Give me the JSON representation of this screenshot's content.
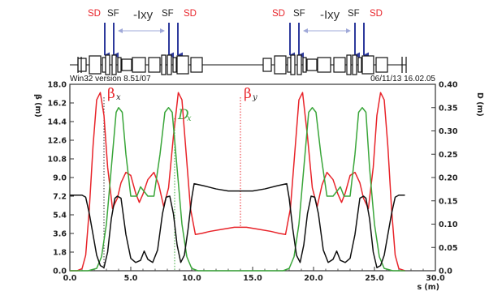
{
  "header": {
    "version": "Win32 version 8.51/07",
    "datetime": "06/11/13  16.02.05"
  },
  "magnets": {
    "sd": "SD",
    "sf": "SF",
    "lxy": "-Ixy",
    "sd_color": "#e8242a",
    "sf_color": "#222222",
    "arrow_color": "#2e3a9c",
    "lxy_line_color": "#9fa8d8"
  },
  "chart_data": {
    "type": "line",
    "xlabel": "s (m)",
    "ylabel_left": "β (m)",
    "ylabel_right": "D (m)",
    "xlim": [
      0,
      30
    ],
    "ylim_left": [
      0,
      18
    ],
    "ylim_right": [
      0,
      0.4
    ],
    "x_ticks": [
      "0.0",
      "5.0",
      "10.0",
      "15.0",
      "20.0",
      "25.0",
      "30.0"
    ],
    "y_ticks_left": [
      "0.0",
      "1.8",
      "3.6",
      "5.4",
      "7.2",
      "9.0",
      "10.8",
      "12.6",
      "14.4",
      "16.2",
      "18.0"
    ],
    "y_ticks_right": [
      "0.0",
      "0.05",
      "0.10",
      "0.15",
      "0.20",
      "0.25",
      "0.30",
      "0.35",
      "0.40"
    ],
    "grid": false,
    "series": [
      {
        "name": "βx",
        "axis": "left",
        "color": "#e8242a",
        "points": [
          [
            0,
            0
          ],
          [
            0.6,
            0
          ],
          [
            1.0,
            0.2
          ],
          [
            1.3,
            1.5
          ],
          [
            1.6,
            6
          ],
          [
            1.9,
            12
          ],
          [
            2.2,
            16.5
          ],
          [
            2.5,
            17.2
          ],
          [
            2.8,
            15
          ],
          [
            3.1,
            10
          ],
          [
            3.5,
            6
          ],
          [
            3.9,
            7
          ],
          [
            4.2,
            8.5
          ],
          [
            4.6,
            9.5
          ],
          [
            5.0,
            9.2
          ],
          [
            5.4,
            7.5
          ],
          [
            5.7,
            6.6
          ],
          [
            6.0,
            7.4
          ],
          [
            6.4,
            8.8
          ],
          [
            6.9,
            9.5
          ],
          [
            7.3,
            8.3
          ],
          [
            7.7,
            6.2
          ],
          [
            8.1,
            8
          ],
          [
            8.5,
            13
          ],
          [
            8.9,
            17.2
          ],
          [
            9.2,
            16.5
          ],
          [
            9.5,
            12
          ],
          [
            9.9,
            6
          ],
          [
            10.3,
            3.5
          ],
          [
            10.8,
            3.6
          ],
          [
            11.5,
            3.8
          ],
          [
            12.5,
            4.0
          ],
          [
            13.5,
            4.2
          ],
          [
            14.0,
            4.2
          ],
          [
            14.5,
            4.2
          ],
          [
            15.5,
            4.0
          ],
          [
            16.5,
            3.8
          ],
          [
            17.2,
            3.6
          ],
          [
            17.7,
            3.5
          ],
          [
            18.1,
            6
          ],
          [
            18.5,
            12
          ],
          [
            18.8,
            16.5
          ],
          [
            19.1,
            17.2
          ],
          [
            19.5,
            13
          ],
          [
            19.9,
            8
          ],
          [
            20.3,
            6.2
          ],
          [
            20.7,
            8.3
          ],
          [
            21.1,
            9.5
          ],
          [
            21.6,
            8.8
          ],
          [
            22.0,
            7.4
          ],
          [
            22.3,
            6.6
          ],
          [
            22.6,
            7.5
          ],
          [
            23.0,
            9.2
          ],
          [
            23.4,
            9.5
          ],
          [
            23.8,
            8.5
          ],
          [
            24.1,
            7
          ],
          [
            24.5,
            6
          ],
          [
            24.9,
            10
          ],
          [
            25.2,
            15
          ],
          [
            25.5,
            17.2
          ],
          [
            25.8,
            16.5
          ],
          [
            26.1,
            12
          ],
          [
            26.4,
            6
          ],
          [
            26.7,
            1.5
          ],
          [
            27.0,
            0.2
          ],
          [
            27.5,
            0
          ]
        ]
      },
      {
        "name": "Dx",
        "axis": "right",
        "color": "#3aa63a",
        "points": [
          [
            0,
            0
          ],
          [
            1.5,
            0
          ],
          [
            2.2,
            0.005
          ],
          [
            2.6,
            0.03
          ],
          [
            3.0,
            0.1
          ],
          [
            3.4,
            0.22
          ],
          [
            3.8,
            0.34
          ],
          [
            4.0,
            0.35
          ],
          [
            4.3,
            0.34
          ],
          [
            4.6,
            0.25
          ],
          [
            5.0,
            0.16
          ],
          [
            5.5,
            0.16
          ],
          [
            5.8,
            0.18
          ],
          [
            6.1,
            0.17
          ],
          [
            6.4,
            0.16
          ],
          [
            6.9,
            0.16
          ],
          [
            7.4,
            0.25
          ],
          [
            7.8,
            0.34
          ],
          [
            8.1,
            0.35
          ],
          [
            8.4,
            0.34
          ],
          [
            8.8,
            0.22
          ],
          [
            9.2,
            0.1
          ],
          [
            9.6,
            0.03
          ],
          [
            10.0,
            0.005
          ],
          [
            10.5,
            0
          ],
          [
            17.5,
            0
          ],
          [
            18.0,
            0.005
          ],
          [
            18.4,
            0.03
          ],
          [
            18.8,
            0.1
          ],
          [
            19.2,
            0.22
          ],
          [
            19.6,
            0.34
          ],
          [
            19.9,
            0.35
          ],
          [
            20.2,
            0.34
          ],
          [
            20.6,
            0.25
          ],
          [
            21.1,
            0.16
          ],
          [
            21.6,
            0.16
          ],
          [
            21.9,
            0.17
          ],
          [
            22.2,
            0.18
          ],
          [
            22.5,
            0.16
          ],
          [
            23.0,
            0.16
          ],
          [
            23.4,
            0.25
          ],
          [
            23.7,
            0.34
          ],
          [
            24.0,
            0.35
          ],
          [
            24.3,
            0.34
          ],
          [
            24.6,
            0.22
          ],
          [
            25.0,
            0.1
          ],
          [
            25.4,
            0.03
          ],
          [
            25.8,
            0.005
          ],
          [
            26.5,
            0
          ],
          [
            27.5,
            0
          ]
        ]
      },
      {
        "name": "βy",
        "axis": "left",
        "color": "#111111",
        "points": [
          [
            0,
            7.3
          ],
          [
            1.0,
            7.3
          ],
          [
            1.3,
            7.1
          ],
          [
            1.6,
            5.5
          ],
          [
            1.9,
            3.5
          ],
          [
            2.2,
            1.5
          ],
          [
            2.5,
            0.5
          ],
          [
            2.8,
            0.3
          ],
          [
            3.1,
            1.8
          ],
          [
            3.4,
            5
          ],
          [
            3.7,
            7.0
          ],
          [
            3.9,
            7.2
          ],
          [
            4.2,
            7.0
          ],
          [
            4.6,
            3.5
          ],
          [
            5.0,
            1.2
          ],
          [
            5.4,
            0.8
          ],
          [
            5.8,
            1.0
          ],
          [
            6.1,
            1.9
          ],
          [
            6.4,
            1.1
          ],
          [
            6.8,
            0.8
          ],
          [
            7.2,
            2
          ],
          [
            7.6,
            5.5
          ],
          [
            7.9,
            7.1
          ],
          [
            8.2,
            7.2
          ],
          [
            8.5,
            5.5
          ],
          [
            8.8,
            2.5
          ],
          [
            9.1,
            0.8
          ],
          [
            9.4,
            1.5
          ],
          [
            9.7,
            4
          ],
          [
            10.0,
            7.0
          ],
          [
            10.2,
            8.4
          ],
          [
            11.0,
            8.2
          ],
          [
            12.0,
            7.9
          ],
          [
            13.0,
            7.7
          ],
          [
            14.0,
            7.7
          ],
          [
            15.0,
            7.7
          ],
          [
            16.0,
            7.9
          ],
          [
            17.0,
            8.2
          ],
          [
            17.8,
            8.4
          ],
          [
            18.0,
            7.0
          ],
          [
            18.3,
            4
          ],
          [
            18.6,
            1.5
          ],
          [
            18.9,
            0.8
          ],
          [
            19.2,
            2.5
          ],
          [
            19.5,
            5.5
          ],
          [
            19.8,
            7.2
          ],
          [
            20.1,
            7.1
          ],
          [
            20.4,
            5.5
          ],
          [
            20.8,
            2
          ],
          [
            21.2,
            0.8
          ],
          [
            21.6,
            1.1
          ],
          [
            21.9,
            1.9
          ],
          [
            22.2,
            1.0
          ],
          [
            22.6,
            0.8
          ],
          [
            23.0,
            1.2
          ],
          [
            23.4,
            3.5
          ],
          [
            23.8,
            7.0
          ],
          [
            24.1,
            7.2
          ],
          [
            24.3,
            7.0
          ],
          [
            24.6,
            5
          ],
          [
            24.9,
            1.8
          ],
          [
            25.2,
            0.3
          ],
          [
            25.5,
            0.5
          ],
          [
            25.8,
            1.5
          ],
          [
            26.1,
            3.5
          ],
          [
            26.4,
            5.5
          ],
          [
            26.7,
            7.1
          ],
          [
            27.0,
            7.3
          ],
          [
            27.5,
            7.3
          ]
        ]
      }
    ],
    "annotations": [
      {
        "type": "vline",
        "x": 2.8,
        "axis": "left",
        "y": 18,
        "color": "#333333",
        "style": "dotted",
        "label": "β",
        "sub": "x",
        "label_color": "#e8242a"
      },
      {
        "type": "vline",
        "x": 8.6,
        "axis": "right",
        "y": 0.355,
        "color": "#3aa63a",
        "style": "dotted",
        "label": "D",
        "sub": "x",
        "label_color": "#3aa63a"
      },
      {
        "type": "vline",
        "x": 14.0,
        "axis": "left",
        "y": 18,
        "color": "#e8242a",
        "style": "dotted",
        "label": "β",
        "sub": "y",
        "label_color": "#e8242a"
      }
    ]
  }
}
